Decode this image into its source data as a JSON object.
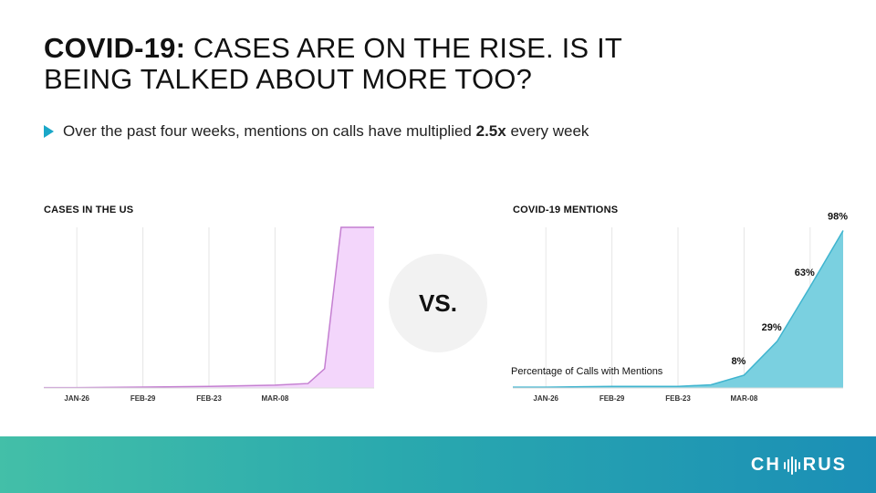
{
  "header": {
    "title_bold": "COVID-19:",
    "title_rest": " CASES ARE ON THE RISE. IS IT BEING TALKED ABOUT MORE TOO?"
  },
  "bullet": {
    "text_before": "Over the past four weeks, mentions on calls have multiplied ",
    "highlight": "2.5x",
    "text_after": " every week"
  },
  "vs_label": "VS.",
  "logo_text_left": "CH",
  "logo_text_right": "RUS",
  "colors": {
    "cases_fill": "#f3d6fb",
    "cases_line": "#c47fd1",
    "mentions_fill": "#7ad0e0",
    "mentions_line": "#3fb4cf",
    "accent": "#1aa7c8"
  },
  "chart_data": [
    {
      "type": "area",
      "title": "CASES IN THE US",
      "categories": [
        "JAN-26",
        "FEB-29",
        "FEB-23",
        "MAR-08"
      ],
      "x": [
        0,
        1,
        2,
        3,
        3.5,
        3.75,
        4,
        4.5
      ],
      "values": [
        0.2,
        0.6,
        1,
        1.8,
        2.8,
        12,
        100,
        100
      ],
      "ylim": [
        0,
        100
      ],
      "grid": "vertical",
      "note": "no y-axis labels shown"
    },
    {
      "type": "area",
      "title": "COVID-19 MENTIONS",
      "categories": [
        "JAN-26",
        "FEB-29",
        "FEB-23",
        "MAR-08"
      ],
      "series_label": "Percentage of Calls with Mentions",
      "x": [
        0,
        1,
        2,
        2.5,
        3,
        3.5,
        4,
        4.5
      ],
      "values": [
        0.5,
        1,
        1,
        2,
        8,
        29,
        63,
        98
      ],
      "data_labels": [
        {
          "x": 3,
          "text": "8%"
        },
        {
          "x": 3.5,
          "text": "29%"
        },
        {
          "x": 4,
          "text": "63%"
        },
        {
          "x": 4.5,
          "text": "98%"
        }
      ],
      "ylim": [
        0,
        100
      ],
      "grid": "vertical"
    }
  ]
}
